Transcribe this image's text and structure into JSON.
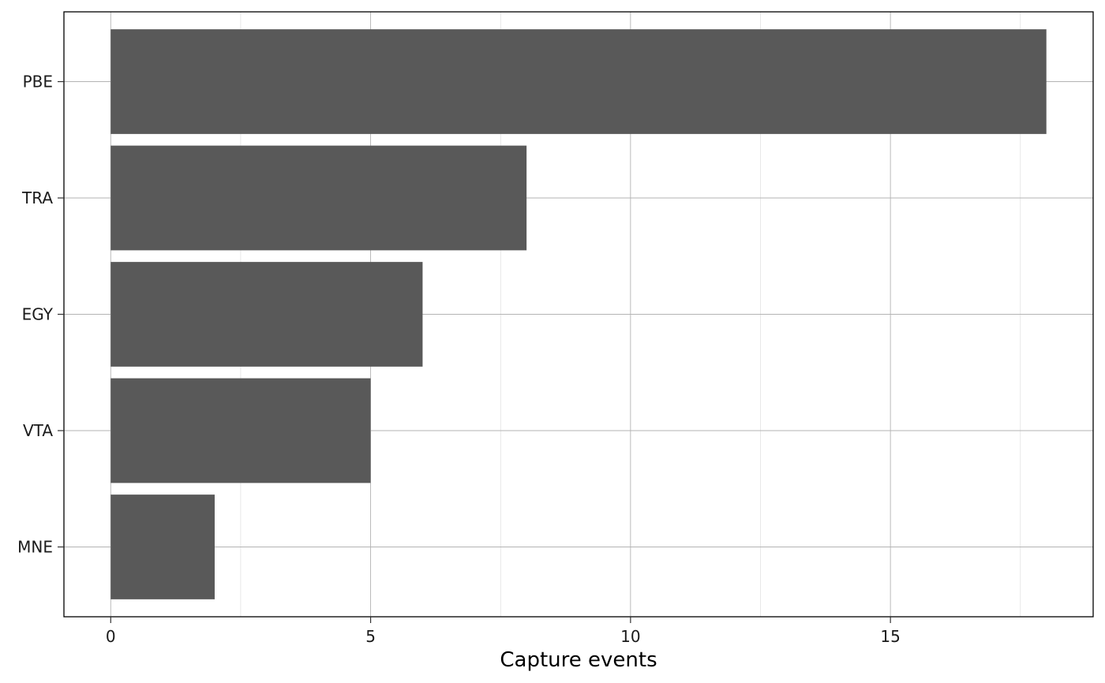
{
  "chart_data": {
    "type": "bar",
    "orientation": "horizontal",
    "categories": [
      "PBE",
      "TRA",
      "EGY",
      "VTA",
      "MNE"
    ],
    "values": [
      18,
      8,
      6,
      5,
      2
    ],
    "title": "",
    "xlabel": "Capture events",
    "ylabel": "",
    "xlim": [
      -0.9,
      18.9
    ],
    "xticks": [
      0,
      5,
      10,
      15
    ],
    "xtick_labels": [
      "0",
      "5",
      "10",
      "15"
    ],
    "minor_gridlines": [
      2.5,
      7.5,
      12.5,
      17.5
    ],
    "grid": true,
    "legend": "none",
    "colors": {
      "bar": "#595959",
      "grid_major": "#b3b3b3",
      "grid_minor": "#dedede",
      "panel_border": "#000000",
      "background": "#ffffff"
    }
  }
}
